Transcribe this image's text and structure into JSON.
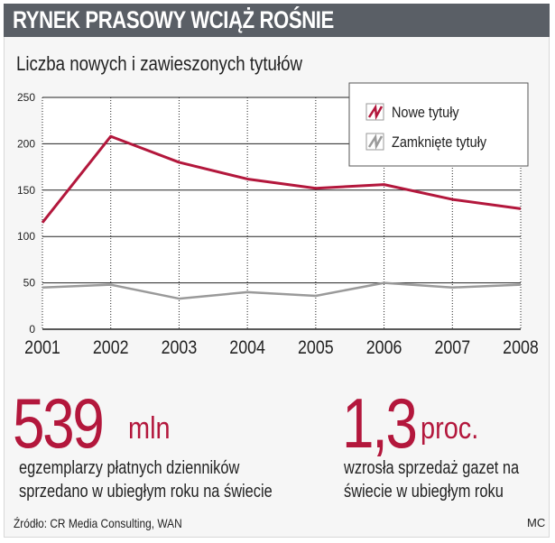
{
  "header": {
    "title": "RYNEK PRASOWY WCIĄŻ ROŚNIE"
  },
  "chart_data": {
    "type": "line",
    "title": "Liczba nowych i zawieszonych tytułów",
    "x": [
      "2001",
      "2002",
      "2003",
      "2004",
      "2005",
      "2006",
      "2007",
      "2008"
    ],
    "series": [
      {
        "name": "Nowe tytuły",
        "color": "#b3173c",
        "values": [
          115,
          208,
          180,
          162,
          152,
          156,
          140,
          130
        ]
      },
      {
        "name": "Zamknięte tytuły",
        "color": "#9a9a9a",
        "values": [
          45,
          48,
          33,
          40,
          36,
          50,
          45,
          48
        ]
      }
    ],
    "ylim": [
      0,
      250
    ],
    "yticks": [
      "0",
      "50",
      "100",
      "150",
      "200",
      "250"
    ],
    "grid": true,
    "legend": "top-right"
  },
  "stats": [
    {
      "number": "539",
      "unit": "mln",
      "description": [
        "egzemplarzy płatnych dzienników",
        "sprzedano w ubiegłym roku na świecie"
      ]
    },
    {
      "number": "1,3",
      "unit": "proc.",
      "description": [
        "wzrosła sprzedaż gazet na",
        "świecie w ubiegłym roku"
      ]
    }
  ],
  "footer": {
    "source": "Źródło: CR Media Consulting, WAN",
    "credit": "MC"
  }
}
